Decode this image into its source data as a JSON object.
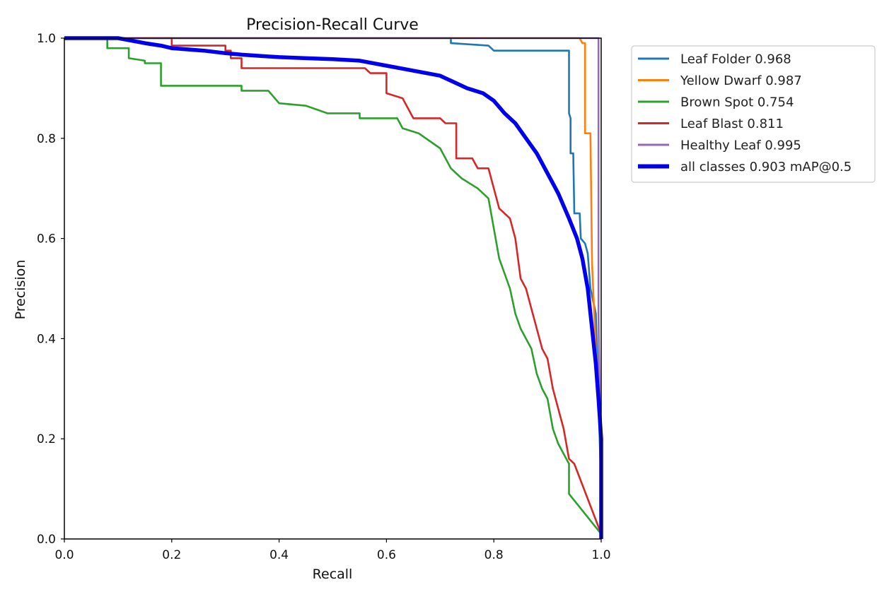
{
  "chart_data": {
    "type": "line",
    "title": "Precision-Recall Curve",
    "xlabel": "Recall",
    "ylabel": "Precision",
    "xlim": [
      0,
      1
    ],
    "ylim": [
      0,
      1
    ],
    "x_ticks": [
      "0.0",
      "0.2",
      "0.4",
      "0.6",
      "0.8",
      "1.0"
    ],
    "y_ticks": [
      "0.0",
      "0.2",
      "0.4",
      "0.6",
      "0.8",
      "1.0"
    ],
    "grid": false,
    "legend_position": "outside-top-right",
    "series": [
      {
        "name": "Leaf Folder 0.968",
        "color": "#1f77b4",
        "width": "normal",
        "points": [
          [
            0,
            1
          ],
          [
            0.72,
            1
          ],
          [
            0.72,
            0.99
          ],
          [
            0.79,
            0.985
          ],
          [
            0.8,
            0.975
          ],
          [
            0.94,
            0.975
          ],
          [
            0.94,
            0.85
          ],
          [
            0.943,
            0.84
          ],
          [
            0.943,
            0.77
          ],
          [
            0.948,
            0.77
          ],
          [
            0.95,
            0.65
          ],
          [
            0.96,
            0.65
          ],
          [
            0.962,
            0.6
          ],
          [
            0.97,
            0.59
          ],
          [
            0.975,
            0.57
          ],
          [
            0.98,
            0.5
          ],
          [
            0.99,
            0.45
          ],
          [
            1.0,
            0.1
          ],
          [
            1.0,
            0
          ]
        ]
      },
      {
        "name": "Yellow Dwarf 0.987",
        "color": "#ff7f0e",
        "width": "normal",
        "points": [
          [
            0,
            1
          ],
          [
            0.96,
            1
          ],
          [
            0.965,
            0.99
          ],
          [
            0.97,
            0.99
          ],
          [
            0.97,
            0.81
          ],
          [
            0.98,
            0.81
          ],
          [
            0.983,
            0.55
          ],
          [
            0.985,
            0.5
          ],
          [
            0.99,
            0.38
          ],
          [
            1.0,
            0.2
          ],
          [
            1.0,
            0
          ]
        ]
      },
      {
        "name": "Brown Spot 0.754",
        "color": "#2ca02c",
        "width": "normal",
        "points": [
          [
            0,
            1
          ],
          [
            0.08,
            1
          ],
          [
            0.08,
            0.98
          ],
          [
            0.12,
            0.98
          ],
          [
            0.12,
            0.96
          ],
          [
            0.15,
            0.955
          ],
          [
            0.15,
            0.95
          ],
          [
            0.18,
            0.95
          ],
          [
            0.18,
            0.905
          ],
          [
            0.33,
            0.905
          ],
          [
            0.33,
            0.895
          ],
          [
            0.38,
            0.895
          ],
          [
            0.4,
            0.87
          ],
          [
            0.45,
            0.865
          ],
          [
            0.49,
            0.85
          ],
          [
            0.55,
            0.85
          ],
          [
            0.55,
            0.84
          ],
          [
            0.62,
            0.84
          ],
          [
            0.63,
            0.82
          ],
          [
            0.66,
            0.81
          ],
          [
            0.7,
            0.78
          ],
          [
            0.72,
            0.74
          ],
          [
            0.74,
            0.72
          ],
          [
            0.77,
            0.7
          ],
          [
            0.79,
            0.68
          ],
          [
            0.8,
            0.62
          ],
          [
            0.81,
            0.56
          ],
          [
            0.82,
            0.53
          ],
          [
            0.83,
            0.5
          ],
          [
            0.84,
            0.45
          ],
          [
            0.85,
            0.42
          ],
          [
            0.87,
            0.38
          ],
          [
            0.88,
            0.33
          ],
          [
            0.89,
            0.3
          ],
          [
            0.9,
            0.28
          ],
          [
            0.91,
            0.22
          ],
          [
            0.92,
            0.19
          ],
          [
            0.93,
            0.17
          ],
          [
            0.94,
            0.15
          ],
          [
            0.94,
            0.09
          ],
          [
            1.0,
            0.01
          ]
        ]
      },
      {
        "name": "Leaf Blast 0.811",
        "color": "#d62728",
        "width": "normal",
        "points": [
          [
            0,
            1
          ],
          [
            0.2,
            1
          ],
          [
            0.2,
            0.985
          ],
          [
            0.3,
            0.985
          ],
          [
            0.3,
            0.975
          ],
          [
            0.31,
            0.975
          ],
          [
            0.31,
            0.96
          ],
          [
            0.33,
            0.96
          ],
          [
            0.33,
            0.94
          ],
          [
            0.56,
            0.94
          ],
          [
            0.57,
            0.93
          ],
          [
            0.6,
            0.93
          ],
          [
            0.6,
            0.89
          ],
          [
            0.63,
            0.88
          ],
          [
            0.64,
            0.86
          ],
          [
            0.65,
            0.84
          ],
          [
            0.7,
            0.84
          ],
          [
            0.71,
            0.83
          ],
          [
            0.73,
            0.83
          ],
          [
            0.73,
            0.76
          ],
          [
            0.76,
            0.76
          ],
          [
            0.77,
            0.74
          ],
          [
            0.79,
            0.74
          ],
          [
            0.8,
            0.7
          ],
          [
            0.81,
            0.66
          ],
          [
            0.83,
            0.64
          ],
          [
            0.84,
            0.6
          ],
          [
            0.85,
            0.52
          ],
          [
            0.86,
            0.5
          ],
          [
            0.87,
            0.46
          ],
          [
            0.88,
            0.42
          ],
          [
            0.89,
            0.38
          ],
          [
            0.9,
            0.36
          ],
          [
            0.91,
            0.3
          ],
          [
            0.92,
            0.26
          ],
          [
            0.93,
            0.22
          ],
          [
            0.94,
            0.16
          ],
          [
            0.95,
            0.15
          ],
          [
            1.0,
            0.01
          ]
        ]
      },
      {
        "name": "Healthy Leaf 0.995",
        "color": "#9467bd",
        "width": "normal",
        "points": [
          [
            0,
            1
          ],
          [
            0.995,
            1
          ],
          [
            0.995,
            0.45
          ],
          [
            1.0,
            0.05
          ],
          [
            1.0,
            0
          ]
        ]
      },
      {
        "name": "all classes 0.903 mAP@0.5",
        "color": "#0000ee",
        "width": "thick",
        "points": [
          [
            0,
            1
          ],
          [
            0.1,
            1
          ],
          [
            0.15,
            0.99
          ],
          [
            0.18,
            0.985
          ],
          [
            0.2,
            0.98
          ],
          [
            0.26,
            0.975
          ],
          [
            0.3,
            0.97
          ],
          [
            0.33,
            0.967
          ],
          [
            0.4,
            0.962
          ],
          [
            0.45,
            0.96
          ],
          [
            0.5,
            0.958
          ],
          [
            0.55,
            0.955
          ],
          [
            0.6,
            0.945
          ],
          [
            0.65,
            0.935
          ],
          [
            0.7,
            0.925
          ],
          [
            0.72,
            0.915
          ],
          [
            0.75,
            0.9
          ],
          [
            0.78,
            0.89
          ],
          [
            0.8,
            0.875
          ],
          [
            0.82,
            0.85
          ],
          [
            0.84,
            0.83
          ],
          [
            0.86,
            0.8
          ],
          [
            0.88,
            0.77
          ],
          [
            0.9,
            0.73
          ],
          [
            0.92,
            0.69
          ],
          [
            0.94,
            0.64
          ],
          [
            0.955,
            0.6
          ],
          [
            0.965,
            0.56
          ],
          [
            0.975,
            0.5
          ],
          [
            0.98,
            0.45
          ],
          [
            0.985,
            0.4
          ],
          [
            0.99,
            0.35
          ],
          [
            0.995,
            0.28
          ],
          [
            1.0,
            0.2
          ],
          [
            1.0,
            0
          ]
        ]
      }
    ]
  }
}
